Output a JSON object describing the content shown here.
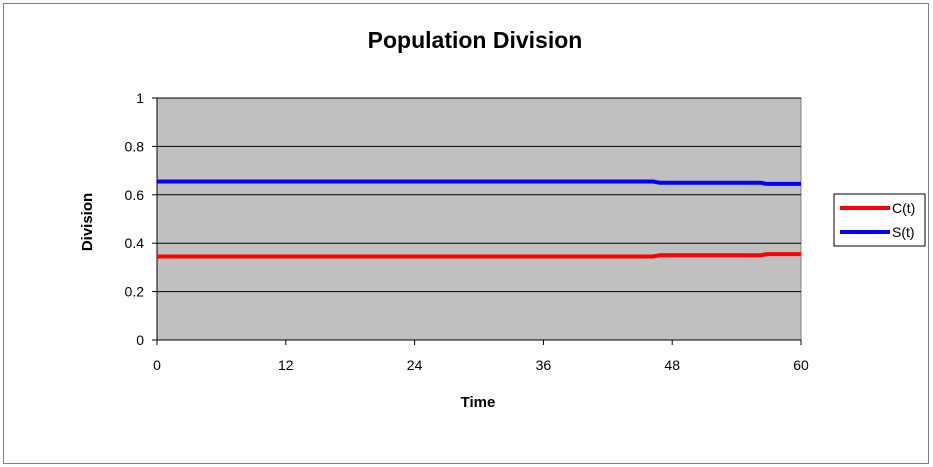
{
  "chart_data": {
    "type": "line",
    "title": "Population Division",
    "xlabel": "Time",
    "ylabel": "Division",
    "xlim": [
      0,
      60
    ],
    "ylim": [
      0,
      1
    ],
    "x_ticks": [
      "0",
      "12",
      "24",
      "36",
      "48",
      "60"
    ],
    "y_ticks": [
      "0",
      "0.2",
      "0.4",
      "0.6",
      "0.8",
      "1"
    ],
    "grid": "horizontal",
    "plot_background": "#c0c0c0",
    "legend_position": "right",
    "series": [
      {
        "name": "C(t)",
        "color": "#ff0000",
        "x": [
          0,
          46.2,
          46.8,
          56.2,
          56.8,
          60
        ],
        "y": [
          0.345,
          0.345,
          0.35,
          0.35,
          0.355,
          0.355
        ]
      },
      {
        "name": "S(t)",
        "color": "#0000ff",
        "x": [
          0,
          46.2,
          46.8,
          56.2,
          56.8,
          60
        ],
        "y": [
          0.655,
          0.655,
          0.65,
          0.65,
          0.645,
          0.645
        ]
      }
    ]
  }
}
